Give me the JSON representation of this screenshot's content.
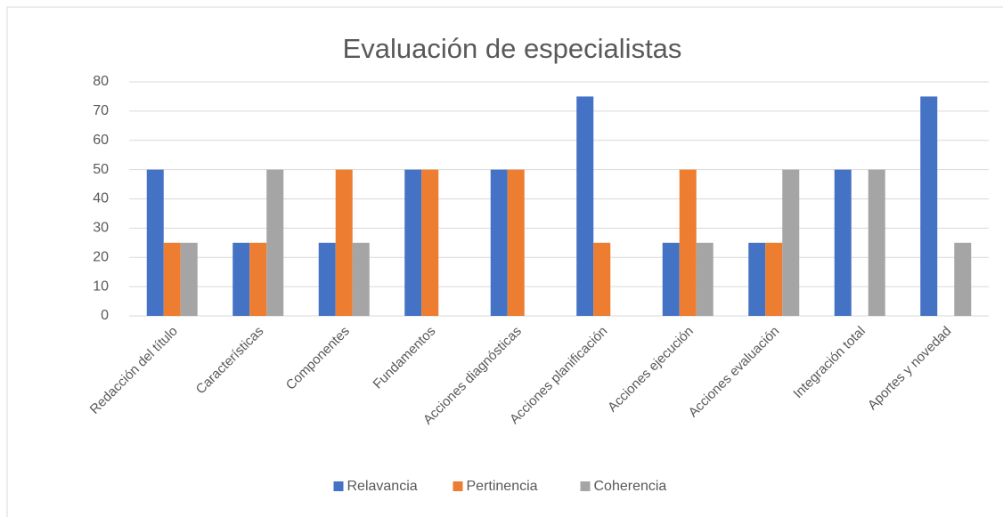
{
  "chart_data": {
    "type": "bar",
    "title": "Evaluación de especialistas",
    "categories": [
      "Redacción del título",
      "Características",
      "Componentes",
      "Fundamentos",
      "Acciones diagnósticas",
      "Acciones planificación",
      "Acciones  ejecución",
      "Acciones evaluación",
      "Integración total",
      "Aportes y novedad"
    ],
    "series": [
      {
        "name": "Relavancia",
        "color": "#4472c4",
        "values": [
          50,
          25,
          25,
          50,
          50,
          75,
          25,
          25,
          50,
          75
        ]
      },
      {
        "name": "Pertinencia",
        "color": "#ed7d31",
        "values": [
          25,
          25,
          50,
          50,
          50,
          25,
          50,
          25,
          0,
          0
        ]
      },
      {
        "name": "Coherencia",
        "color": "#a5a5a5",
        "values": [
          25,
          50,
          25,
          0,
          0,
          0,
          25,
          50,
          50,
          25
        ]
      }
    ],
    "ylim": [
      0,
      80
    ],
    "yticks": [
      0,
      10,
      20,
      30,
      40,
      50,
      60,
      70,
      80
    ],
    "grid": true,
    "legend": "bottom"
  }
}
